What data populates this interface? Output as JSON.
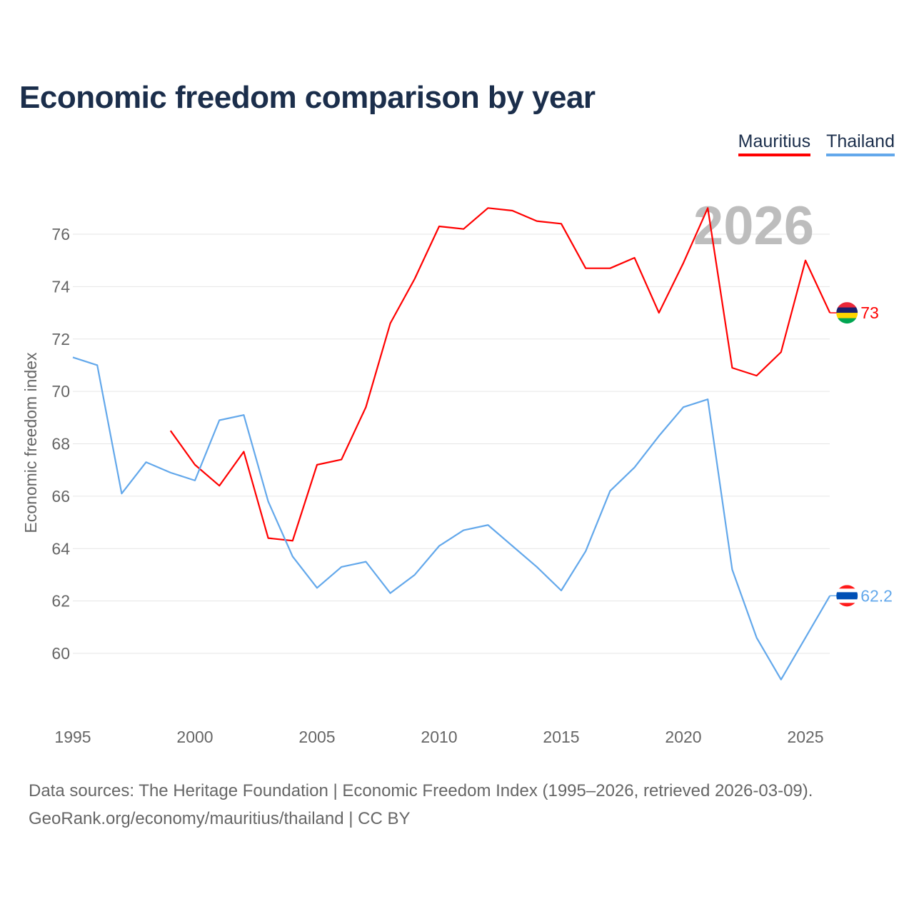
{
  "chart_data": {
    "type": "line",
    "title": "Economic freedom comparison by year",
    "xlabel": "",
    "ylabel": "Economic freedom index",
    "xlim": [
      1995,
      2026
    ],
    "ylim": [
      58,
      78
    ],
    "x_ticks": [
      "1995",
      "2000",
      "2005",
      "2010",
      "2015",
      "2020",
      "2025"
    ],
    "y_ticks": [
      "60",
      "62",
      "64",
      "66",
      "68",
      "70",
      "72",
      "74",
      "76"
    ],
    "grid": true,
    "legend_position": "top-right",
    "year_watermark": "2026",
    "series": [
      {
        "name": "Mauritius",
        "color": "#ff0000",
        "end_label": "73",
        "x": [
          1999,
          2000,
          2001,
          2002,
          2003,
          2004,
          2005,
          2006,
          2007,
          2008,
          2009,
          2010,
          2011,
          2012,
          2013,
          2014,
          2015,
          2016,
          2017,
          2018,
          2019,
          2020,
          2021,
          2022,
          2023,
          2024,
          2025,
          2026
        ],
        "values": [
          68.5,
          67.2,
          66.4,
          67.7,
          64.4,
          64.3,
          67.2,
          67.4,
          69.4,
          72.6,
          74.3,
          76.3,
          76.2,
          77.0,
          76.9,
          76.5,
          76.4,
          74.7,
          74.7,
          75.1,
          73.0,
          74.9,
          77.0,
          70.9,
          70.6,
          71.5,
          75.0,
          73.0
        ],
        "flag": [
          "#ea2839",
          "#1a206d",
          "#ffd500",
          "#00a551"
        ]
      },
      {
        "name": "Thailand",
        "color": "#63a8eb",
        "end_label": "62.2",
        "x": [
          1995,
          1996,
          1997,
          1998,
          1999,
          2000,
          2001,
          2002,
          2003,
          2004,
          2005,
          2006,
          2007,
          2008,
          2009,
          2010,
          2011,
          2012,
          2013,
          2014,
          2015,
          2016,
          2017,
          2018,
          2019,
          2020,
          2021,
          2022,
          2023,
          2024,
          2025,
          2026
        ],
        "values": [
          71.3,
          71.0,
          66.1,
          67.3,
          66.9,
          66.6,
          68.9,
          69.1,
          65.8,
          63.7,
          62.5,
          63.3,
          63.5,
          62.3,
          63.0,
          64.1,
          64.7,
          64.9,
          64.1,
          63.3,
          62.4,
          63.9,
          66.2,
          67.1,
          68.3,
          69.4,
          69.7,
          63.2,
          60.6,
          59.0,
          60.6,
          62.2
        ],
        "flag": [
          "#ff1a1a",
          "#ffffff",
          "#0050b5",
          "#ffffff",
          "#ff1a1a"
        ]
      }
    ]
  },
  "source_lines": [
    "Data sources: The Heritage Foundation | Economic Freedom Index (1995–2026, retrieved 2026-03-09).",
    "GeoRank.org/economy/mauritius/thailand | CC BY"
  ]
}
